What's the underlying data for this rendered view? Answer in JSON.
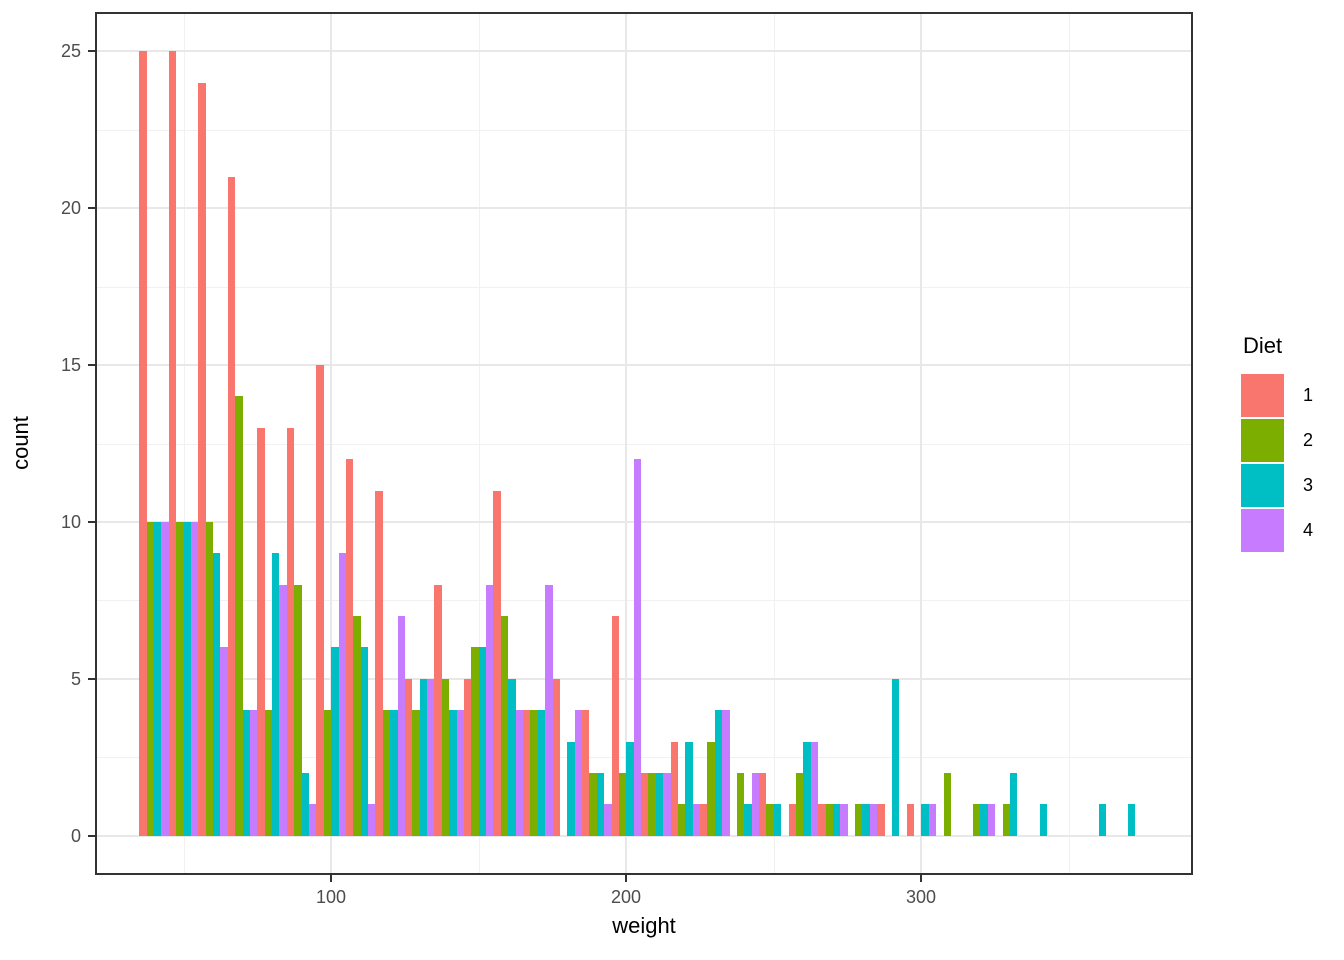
{
  "chart_data": {
    "type": "bar",
    "subtype": "dodged-histogram",
    "title": "",
    "xlabel": "weight",
    "ylabel": "count",
    "bin_width": 10,
    "bin_left_edges": [
      35,
      45,
      55,
      65,
      75,
      85,
      95,
      105,
      115,
      125,
      135,
      145,
      155,
      165,
      175,
      185,
      195,
      205,
      215,
      225,
      235,
      245,
      255,
      265,
      275,
      285,
      295,
      305,
      315,
      325,
      335,
      345,
      355,
      365
    ],
    "series": [
      {
        "name": "1",
        "color": "#F8766D",
        "values": [
          25,
          25,
          24,
          21,
          13,
          13,
          15,
          12,
          11,
          5,
          8,
          5,
          11,
          4,
          5,
          4,
          7,
          2,
          3,
          1,
          0,
          2,
          1,
          1,
          0,
          1,
          1,
          0,
          0,
          0,
          0,
          0,
          0,
          0
        ]
      },
      {
        "name": "2",
        "color": "#7CAE00",
        "values": [
          10,
          10,
          10,
          14,
          4,
          8,
          4,
          7,
          4,
          4,
          5,
          6,
          7,
          4,
          0,
          2,
          2,
          2,
          1,
          3,
          2,
          1,
          2,
          1,
          1,
          0,
          0,
          2,
          1,
          1,
          0,
          0,
          0,
          0
        ]
      },
      {
        "name": "3",
        "color": "#00BFC4",
        "values": [
          10,
          10,
          9,
          4,
          9,
          2,
          6,
          6,
          4,
          5,
          4,
          6,
          5,
          4,
          3,
          2,
          3,
          2,
          3,
          4,
          1,
          1,
          3,
          1,
          1,
          5,
          1,
          0,
          1,
          2,
          1,
          0,
          1,
          1
        ]
      },
      {
        "name": "4",
        "color": "#C77CFF",
        "values": [
          10,
          10,
          6,
          4,
          8,
          1,
          9,
          1,
          7,
          5,
          4,
          8,
          4,
          8,
          4,
          1,
          12,
          2,
          1,
          4,
          2,
          0,
          3,
          1,
          1,
          0,
          1,
          0,
          1,
          0,
          0,
          0,
          0,
          0
        ]
      }
    ],
    "x_major_ticks": [
      100,
      200,
      300
    ],
    "x_minor_gridlines": [
      50,
      150,
      250,
      350
    ],
    "y_major_ticks": [
      0,
      5,
      10,
      15,
      20,
      25
    ],
    "y_minor_gridlines": [
      2.5,
      7.5,
      12.5,
      17.5,
      22.5
    ],
    "xlim": [
      20,
      392
    ],
    "ylim": [
      -1.25,
      26.25
    ],
    "grid": true,
    "legend_position": "right"
  },
  "legend": {
    "title": "Diet",
    "entries": [
      "1",
      "2",
      "3",
      "4"
    ]
  },
  "styles": {
    "background": "#FFFFFF",
    "gridline_major": "#E8E8E8",
    "gridline_minor": "#F1F1F1",
    "panel_border": "#333333",
    "tick_color": "#333333",
    "tick_label_color": "#4D4D4D",
    "axis_title_color": "#000000"
  }
}
